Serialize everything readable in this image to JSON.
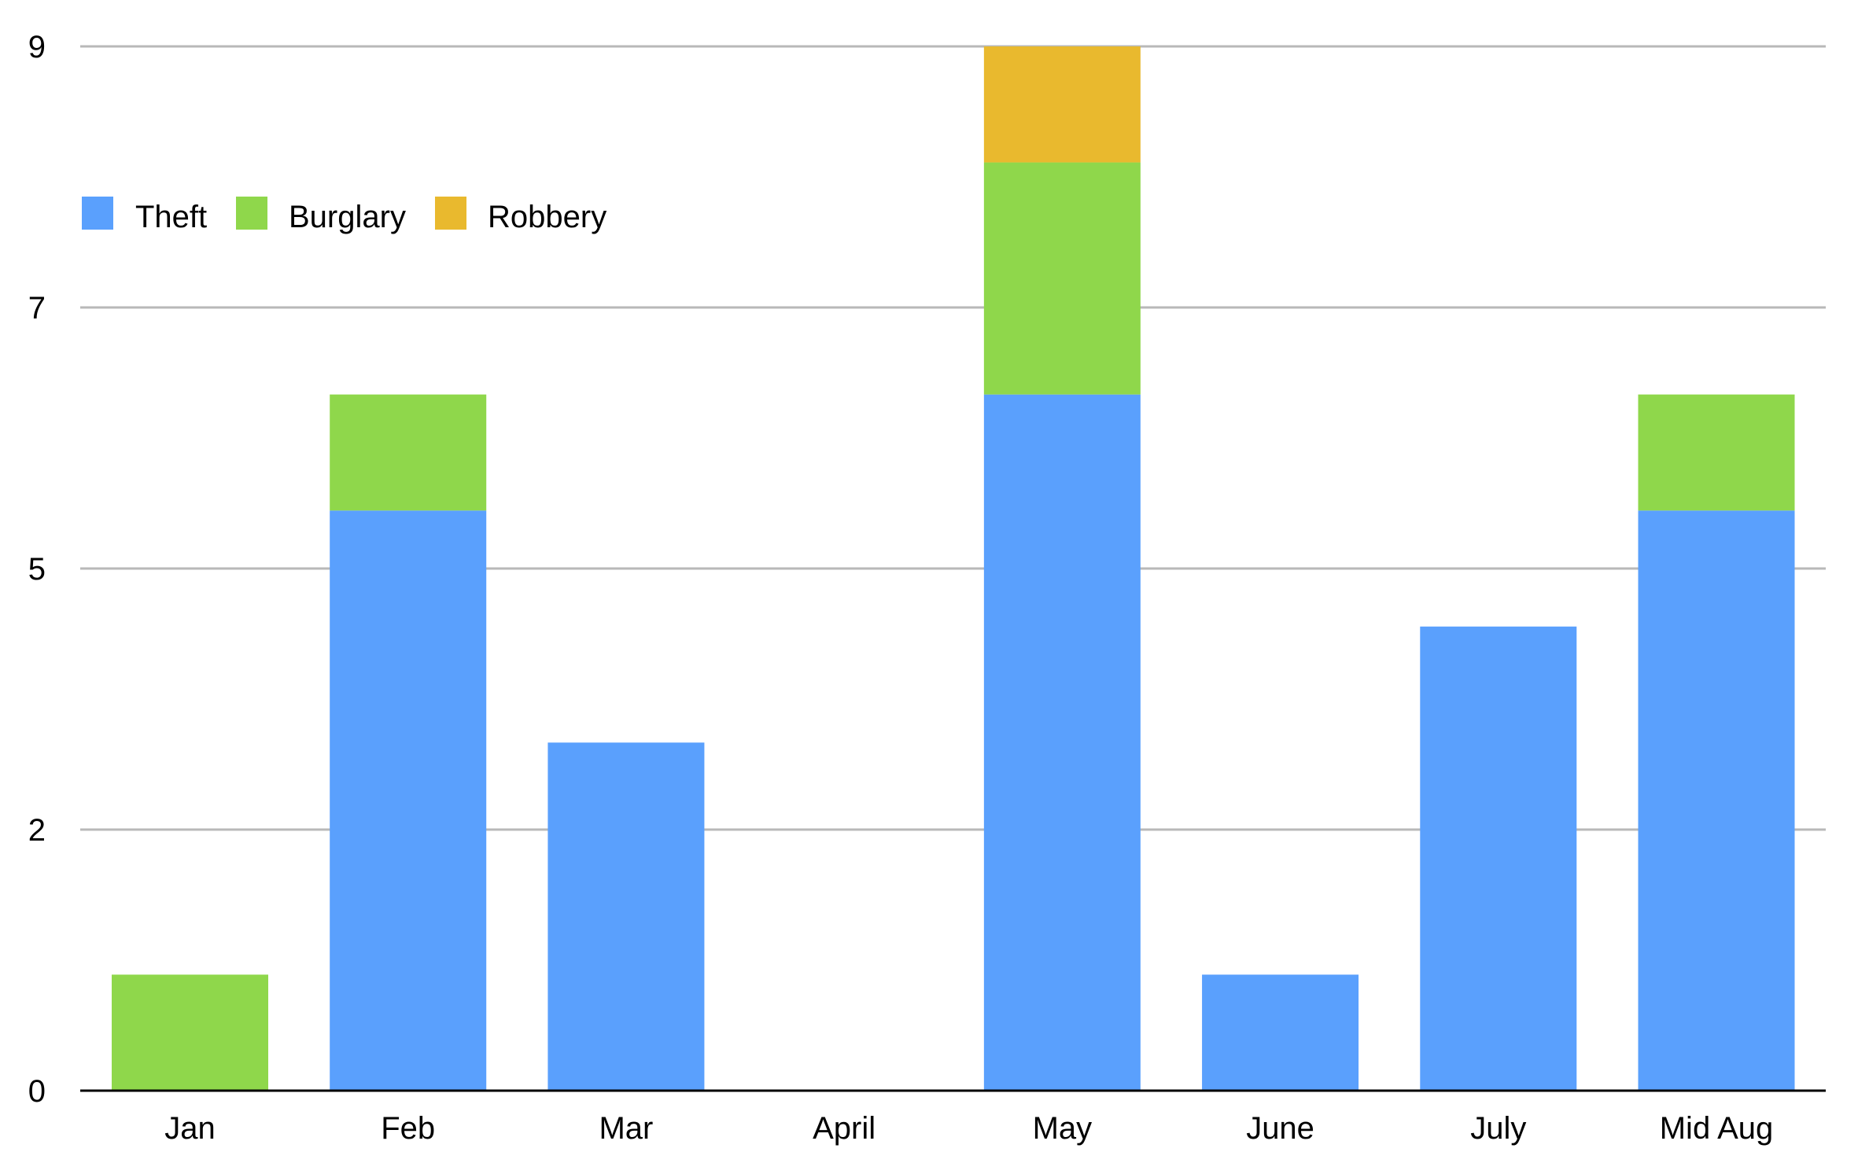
{
  "chart_data": {
    "type": "bar",
    "stacked": true,
    "categories": [
      "Jan",
      "Feb",
      "Mar",
      "April",
      "May",
      "June",
      "July",
      "Mid Aug"
    ],
    "series": [
      {
        "name": "Theft",
        "color": "#5aa0fd",
        "values": [
          0,
          5,
          3,
          0,
          6,
          1,
          4,
          5
        ]
      },
      {
        "name": "Burglary",
        "color": "#8fd74b",
        "values": [
          1,
          1,
          0,
          0,
          2,
          0,
          0,
          1
        ]
      },
      {
        "name": "Robbery",
        "color": "#e9b92e",
        "values": [
          0,
          0,
          0,
          0,
          1,
          0,
          0,
          0
        ]
      }
    ],
    "y_ticks": [
      {
        "label": "0",
        "value": 0
      },
      {
        "label": "2",
        "value": 2.25
      },
      {
        "label": "5",
        "value": 4.5
      },
      {
        "label": "7",
        "value": 6.75
      },
      {
        "label": "9",
        "value": 9
      }
    ],
    "ylim": [
      0,
      9
    ],
    "grid": true,
    "legend": "top-left"
  }
}
